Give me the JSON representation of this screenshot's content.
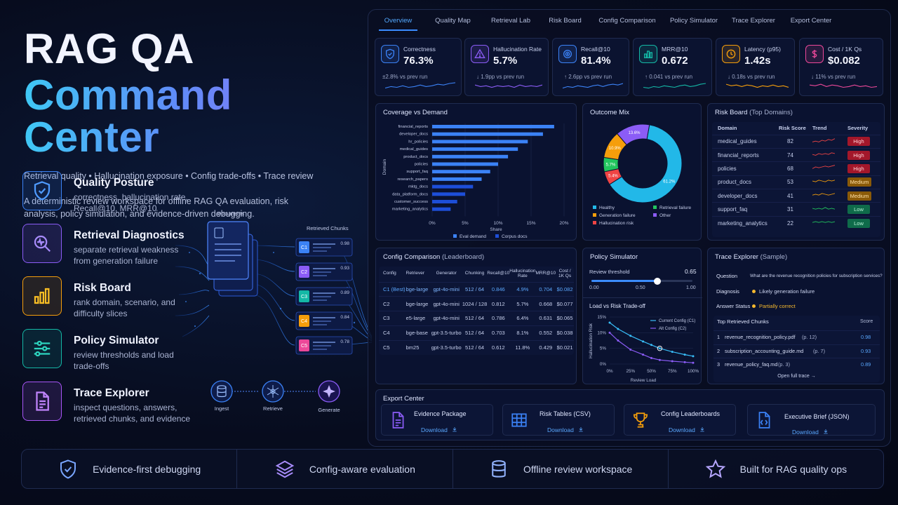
{
  "hero": {
    "title_line1": "RAG QA",
    "title_line2": "Command Center",
    "tagline": "Retrieval quality • Hallucination exposure • Config trade-offs • Trace review",
    "description": "A deterministic review workspace for offline RAG QA evaluation, risk analysis, policy simulation, and evidence-driven debugging."
  },
  "features": [
    {
      "title": "Quality Posture",
      "desc": "correctness, hallucination rate, Recall@10, MRR@10",
      "color": "#3b82f6",
      "icon": "shield-check-icon"
    },
    {
      "title": "Retrieval Diagnostics",
      "desc": "separate retrieval weakness from generation failure",
      "color": "#8b5cf6",
      "icon": "magnifier-pulse-icon"
    },
    {
      "title": "Risk Board",
      "desc": "rank domain, scenario, and difficulty slices",
      "color": "#f59e0b",
      "icon": "bar-chart-icon"
    },
    {
      "title": "Policy Simulator",
      "desc": "review thresholds and load trade-offs",
      "color": "#14b8a6",
      "icon": "sliders-icon"
    },
    {
      "title": "Trace Explorer",
      "desc": "inspect questions, answers, retrieved chunks, and evidence",
      "color": "#a855f7",
      "icon": "document-icon"
    }
  ],
  "flow": {
    "documents_label": "Documents",
    "chunks_label": "Retrieved Chunks",
    "chunks": [
      {
        "id": "C1",
        "score": "0.98",
        "color": "#3b82f6"
      },
      {
        "id": "C2",
        "score": "0.93",
        "color": "#8b5cf6"
      },
      {
        "id": "C3",
        "score": "0.89",
        "color": "#14b8a6"
      },
      {
        "id": "C4",
        "score": "0.84",
        "color": "#f59e0b"
      },
      {
        "id": "C5",
        "score": "0.78",
        "color": "#ec4899"
      }
    ],
    "pipeline": [
      "Ingest",
      "Retrieve",
      "Generate"
    ]
  },
  "tabs": [
    "Overview",
    "Quality Map",
    "Retrieval Lab",
    "Risk Board",
    "Config Comparison",
    "Policy Simulator",
    "Trace Explorer",
    "Export Center"
  ],
  "kpis": [
    {
      "label": "Correctness",
      "value": "76.3%",
      "delta": "±2.8% vs prev run",
      "color": "#3b82f6",
      "icon": "shield-icon"
    },
    {
      "label": "Hallucination Rate",
      "value": "5.7%",
      "delta": "↓ 1.9pp vs prev run",
      "color": "#8b5cf6",
      "icon": "warning-icon"
    },
    {
      "label": "Recall@10",
      "value": "81.4%",
      "delta": "↑ 2.6pp vs prev run",
      "color": "#3b82f6",
      "icon": "target-icon"
    },
    {
      "label": "MRR@10",
      "value": "0.672",
      "delta": "↑ 0.041 vs prev run",
      "color": "#14b8a6",
      "icon": "ranking-icon"
    },
    {
      "label": "Latency (p95)",
      "value": "1.42s",
      "delta": "↓ 0.18s vs prev run",
      "color": "#f59e0b",
      "icon": "clock-icon"
    },
    {
      "label": "Cost / 1K Qs",
      "value": "$0.082",
      "delta": "↓ 11% vs prev run",
      "color": "#ec4899",
      "icon": "dollar-icon"
    }
  ],
  "coverage": {
    "title": "Coverage vs Demand",
    "ylabel": "Domain",
    "xlabel": "Share",
    "ticks": [
      "0%",
      "5%",
      "10%",
      "15%",
      "20%"
    ],
    "legend": [
      "Eval demand",
      "Corpus docs"
    ]
  },
  "outcome": {
    "title": "Outcome Mix",
    "legend": [
      "Healthy",
      "Retrieval failure",
      "Generation failure",
      "Other",
      "Hallucination risk"
    ]
  },
  "risk": {
    "title": "Risk Board",
    "title_suffix": "(Top Domains)",
    "headers": [
      "Domain",
      "Risk Score",
      "Trend",
      "Severity"
    ],
    "rows": [
      {
        "domain": "medical_guides",
        "score": "82",
        "severity": "High"
      },
      {
        "domain": "financial_reports",
        "score": "74",
        "severity": "High"
      },
      {
        "domain": "policies",
        "score": "68",
        "severity": "High"
      },
      {
        "domain": "product_docs",
        "score": "53",
        "severity": "Medium"
      },
      {
        "domain": "developer_docs",
        "score": "41",
        "severity": "Medium"
      },
      {
        "domain": "support_faq",
        "score": "31",
        "severity": "Low"
      },
      {
        "domain": "marketing_analytics",
        "score": "22",
        "severity": "Low"
      }
    ]
  },
  "config": {
    "title": "Config Comparison",
    "title_suffix": "(Leaderboard)",
    "headers": [
      "Config",
      "Retriever",
      "Generator",
      "Chunking",
      "Recall@10",
      "Hallucination Rate",
      "MRR@10",
      "Cost / 1K Qs"
    ],
    "rows": [
      [
        "C1 (Best)",
        "bge-large",
        "gpt-4o-mini",
        "512 / 64",
        "0.846",
        "4.9%",
        "0.704",
        "$0.082"
      ],
      [
        "C2",
        "bge-large",
        "gpt-4o-mini",
        "1024 / 128",
        "0.812",
        "5.7%",
        "0.668",
        "$0.077"
      ],
      [
        "C3",
        "e5-large",
        "gpt-4o-mini",
        "512 / 64",
        "0.786",
        "6.4%",
        "0.631",
        "$0.065"
      ],
      [
        "C4",
        "bge-base",
        "gpt-3.5-turbo",
        "512 / 64",
        "0.703",
        "8.1%",
        "0.552",
        "$0.038"
      ],
      [
        "C5",
        "bm25",
        "gpt-3.5-turbo",
        "512 / 64",
        "0.612",
        "11.8%",
        "0.429",
        "$0.021"
      ]
    ]
  },
  "policy": {
    "title": "Policy Simulator",
    "threshold_label": "Review threshold",
    "threshold_value": "0.65",
    "threshold_fraction": 0.65,
    "scale": [
      "0.00",
      "0.50",
      "1.00"
    ],
    "tradeoff_title": "Load vs Risk Trade-off",
    "legend": [
      "Current Config (C1)",
      "Alt Config (C2)"
    ],
    "y_ticks": [
      "15%",
      "10%",
      "5%",
      "0%"
    ],
    "x_ticks": [
      "0%",
      "25%",
      "50%",
      "75%",
      "100%"
    ],
    "ylabel": "Hallucination Risk",
    "xlabel": "Review Load"
  },
  "trace": {
    "title": "Trace Explorer",
    "title_suffix": "(Sample)",
    "question_label": "Question",
    "question": "What are the revenue recognition policies for subscription services?",
    "diagnosis_label": "Diagnosis",
    "diagnosis": "Likely generation failure",
    "status_label": "Answer Status",
    "status": "Partially correct",
    "chunks_label": "Top Retrieved Chunks",
    "score_label": "Score",
    "chunks": [
      {
        "n": "1",
        "file": "revenue_recognition_policy.pdf",
        "page": "(p. 12)",
        "score": "0.98"
      },
      {
        "n": "2",
        "file": "subscription_accounting_guide.md",
        "page": "(p. 7)",
        "score": "0.93"
      },
      {
        "n": "3",
        "file": "revenue_policy_faq.md",
        "page": "(p. 3)",
        "score": "0.89"
      }
    ],
    "open_label": "Open full trace →"
  },
  "export": {
    "title": "Export Center",
    "download_label": "Download",
    "items": [
      {
        "label": "Evidence Package",
        "icon": "file-icon",
        "color": "#8b5cf6"
      },
      {
        "label": "Risk Tables (CSV)",
        "icon": "table-icon",
        "color": "#3b82f6"
      },
      {
        "label": "Config Leaderboards",
        "icon": "trophy-icon",
        "color": "#f59e0b"
      },
      {
        "label": "Executive Brief (JSON)",
        "icon": "code-file-icon",
        "color": "#3b82f6"
      }
    ]
  },
  "bottom": [
    {
      "label": "Evidence-first debugging",
      "icon": "shield-icon"
    },
    {
      "label": "Config-aware evaluation",
      "icon": "layers-icon"
    },
    {
      "label": "Offline review workspace",
      "icon": "database-icon"
    },
    {
      "label": "Built for RAG quality ops",
      "icon": "star-icon"
    }
  ],
  "chart_data": [
    {
      "type": "bar",
      "title": "Coverage vs Demand",
      "xlabel": "Share",
      "ylabel": "Domain",
      "xlim": [
        0,
        20
      ],
      "categories": [
        "financial_reports",
        "developer_docs",
        "hr_policies",
        "medical_guides",
        "product_docs",
        "policies",
        "support_faq",
        "research_papers",
        "mktg_docs",
        "data_platform_docs",
        "customer_success",
        "marketing_analytics"
      ],
      "series": [
        {
          "name": "Eval demand",
          "values": [
            18.5,
            16.8,
            14.5,
            13.0,
            11.5,
            10.0,
            8.8,
            7.5,
            0,
            0,
            0,
            0
          ]
        },
        {
          "name": "Corpus docs",
          "values": [
            0,
            0,
            0,
            0,
            0,
            0,
            0,
            0,
            6.2,
            5.0,
            3.8,
            2.8
          ]
        }
      ],
      "legend": "bottom"
    },
    {
      "type": "pie",
      "title": "Outcome Mix",
      "labels": [
        "Healthy",
        "Hallucination risk",
        "Retrieval failure",
        "Generation failure",
        "Other"
      ],
      "values": [
        61.2,
        5.4,
        5.7,
        10.9,
        13.6
      ],
      "colors": [
        "#22b8e8",
        "#ef4444",
        "#22c55e",
        "#f59e0b",
        "#8b5cf6"
      ],
      "legend": "bottom"
    },
    {
      "type": "line",
      "title": "Load vs Risk Trade-off",
      "xlabel": "Review Load",
      "ylabel": "Hallucination Risk",
      "xlim": [
        0,
        100
      ],
      "ylim": [
        0,
        15
      ],
      "series": [
        {
          "name": "Current Config (C1)",
          "x": [
            0,
            10,
            25,
            40,
            50,
            60,
            75,
            90,
            100
          ],
          "y": [
            13.2,
            11.2,
            9.0,
            7.2,
            6.1,
            5.0,
            3.9,
            3.0,
            2.5
          ]
        },
        {
          "name": "Alt Config (C2)",
          "x": [
            0,
            10,
            25,
            40,
            50,
            60,
            75,
            90,
            100
          ],
          "y": [
            10.0,
            7.5,
            4.6,
            3.0,
            1.9,
            1.3,
            0.9,
            0.6,
            0.4
          ]
        }
      ]
    }
  ]
}
